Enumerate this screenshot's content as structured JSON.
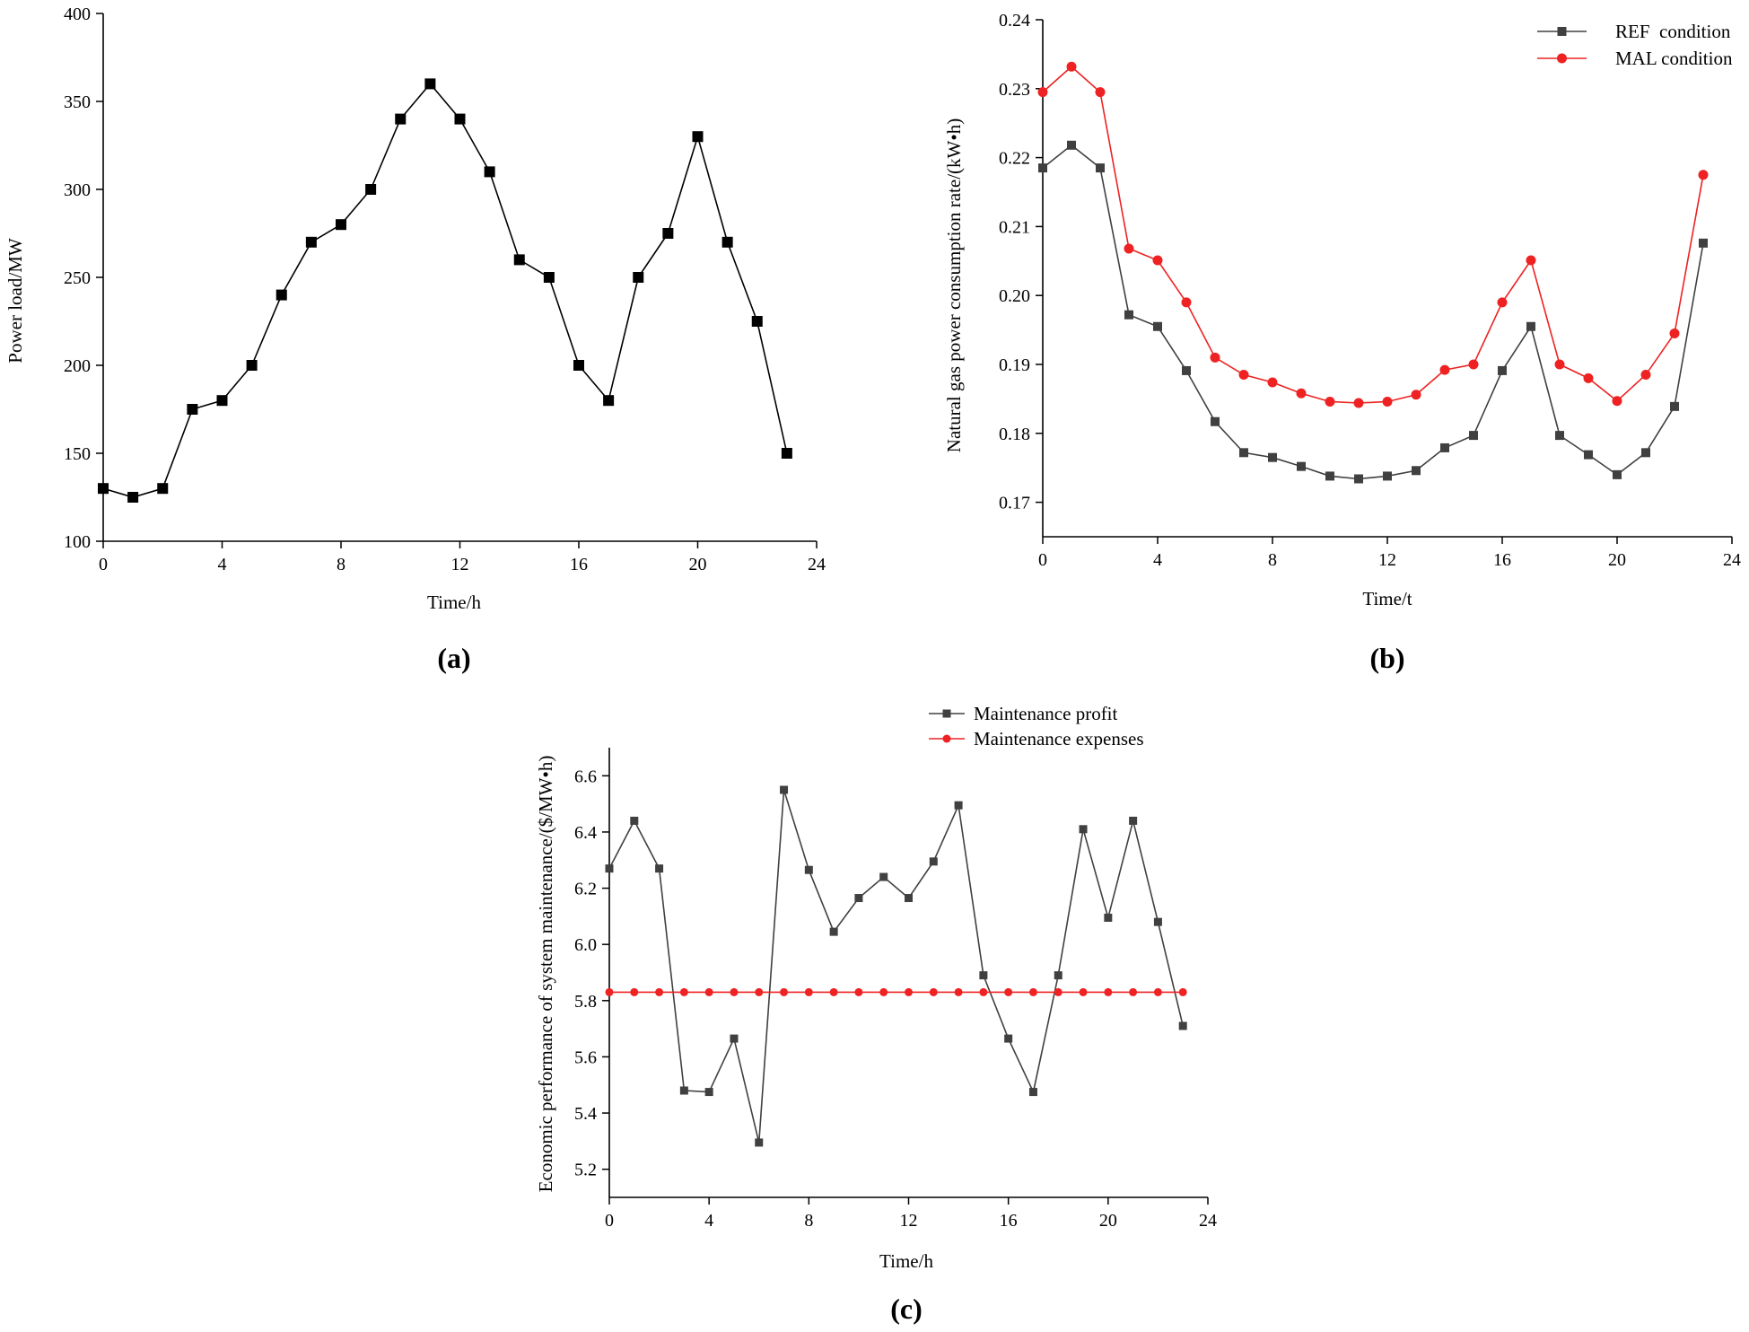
{
  "chart_data": [
    {
      "type": "line",
      "panel_label": "(a)",
      "xlabel": "Time/h",
      "ylabel": "Power load/MW",
      "xlim": [
        0,
        24
      ],
      "ylim": [
        100,
        400
      ],
      "xticks": [
        0,
        4,
        8,
        12,
        16,
        20,
        24
      ],
      "yticks": [
        100,
        150,
        200,
        250,
        300,
        350,
        400
      ],
      "x": [
        0,
        1,
        2,
        3,
        4,
        5,
        6,
        7,
        8,
        9,
        10,
        11,
        12,
        13,
        14,
        15,
        16,
        17,
        18,
        19,
        20,
        21,
        22,
        23
      ],
      "series": [
        {
          "name": "Power load",
          "color": "#000000",
          "marker": "square",
          "values": [
            130,
            125,
            130,
            175,
            180,
            200,
            240,
            270,
            280,
            300,
            340,
            360,
            340,
            310,
            260,
            250,
            200,
            180,
            250,
            275,
            330,
            270,
            225,
            150
          ]
        }
      ]
    },
    {
      "type": "line",
      "panel_label": "(b)",
      "xlabel": "Time/t",
      "ylabel": "Natural gas power consumption rate/(kW•h)",
      "xlim": [
        0,
        24
      ],
      "ylim": [
        0.165,
        0.24
      ],
      "xticks": [
        0,
        4,
        8,
        12,
        16,
        20,
        24
      ],
      "yticks": [
        0.17,
        0.18,
        0.19,
        0.2,
        0.21,
        0.22,
        0.23,
        0.24
      ],
      "legend_position": "top-right",
      "x": [
        0,
        1,
        2,
        3,
        4,
        5,
        6,
        7,
        8,
        9,
        10,
        11,
        12,
        13,
        14,
        15,
        16,
        17,
        18,
        19,
        20,
        21,
        22,
        23
      ],
      "series": [
        {
          "name": "REF  condition",
          "color": "#404040",
          "marker": "square",
          "values": [
            0.2185,
            0.2218,
            0.2185,
            0.1972,
            0.1955,
            0.1891,
            0.1817,
            0.1772,
            0.1765,
            0.1752,
            0.1738,
            0.1734,
            0.1738,
            0.1746,
            0.1779,
            0.1797,
            0.1891,
            0.1955,
            0.1797,
            0.1769,
            0.174,
            0.1772,
            0.1839,
            0.2076
          ]
        },
        {
          "name": "MAL condition",
          "color": "#ee2222",
          "marker": "circle",
          "values": [
            0.2295,
            0.2332,
            0.2295,
            0.2068,
            0.2051,
            0.199,
            0.191,
            0.1885,
            0.1874,
            0.1858,
            0.1846,
            0.1844,
            0.1846,
            0.1856,
            0.1892,
            0.19,
            0.199,
            0.2051,
            0.19,
            0.188,
            0.1847,
            0.1885,
            0.1945,
            0.2175
          ]
        }
      ]
    },
    {
      "type": "line",
      "panel_label": "(c)",
      "xlabel": "Time/h",
      "ylabel": "Economic performance of system maintenance/($/MW•h)",
      "xlim": [
        0,
        24
      ],
      "ylim": [
        5.1,
        6.7
      ],
      "xticks": [
        0,
        4,
        8,
        12,
        16,
        20,
        24
      ],
      "yticks": [
        5.2,
        5.4,
        5.6,
        5.8,
        6.0,
        6.2,
        6.4,
        6.6
      ],
      "legend_position": "top-right",
      "x": [
        0,
        1,
        2,
        3,
        4,
        5,
        6,
        7,
        8,
        9,
        10,
        11,
        12,
        13,
        14,
        15,
        16,
        17,
        18,
        19,
        20,
        21,
        22,
        23
      ],
      "series": [
        {
          "name": "Maintenance profit",
          "color": "#404040",
          "marker": "square",
          "values": [
            6.27,
            6.44,
            6.27,
            5.48,
            5.475,
            5.665,
            5.295,
            6.55,
            6.265,
            6.045,
            6.165,
            6.24,
            6.165,
            6.295,
            6.495,
            5.89,
            5.665,
            5.475,
            5.89,
            6.41,
            6.095,
            6.44,
            6.08,
            5.71
          ]
        },
        {
          "name": "Maintenance expenses",
          "color": "#ee2222",
          "marker": "circle",
          "values": [
            5.83,
            5.83,
            5.83,
            5.83,
            5.83,
            5.83,
            5.83,
            5.83,
            5.83,
            5.83,
            5.83,
            5.83,
            5.83,
            5.83,
            5.83,
            5.83,
            5.83,
            5.83,
            5.83,
            5.83,
            5.83,
            5.83,
            5.83,
            5.83
          ]
        }
      ]
    }
  ]
}
